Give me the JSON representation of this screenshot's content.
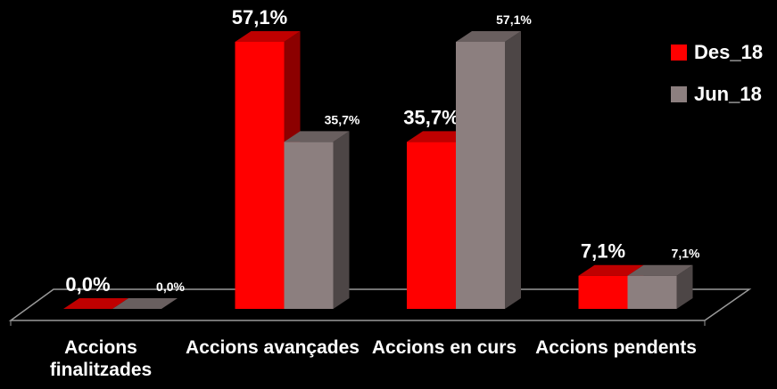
{
  "chart_data": {
    "type": "bar3d",
    "categories": [
      "Accions finalitzades",
      "Accions avançades",
      "Accions en curs",
      "Accions pendents"
    ],
    "series": [
      {
        "name": "Des_18",
        "color": "#ff0000",
        "values": [
          0,
          57.1,
          35.7,
          7.1
        ],
        "value_labels": [
          "0,0%",
          "57,1%",
          "35,7%",
          "7,1%"
        ]
      },
      {
        "name": "Jun_18",
        "color": "#8c7f7f",
        "values": [
          0,
          35.7,
          57.1,
          7.1
        ],
        "value_labels": [
          "0,0%",
          "35,7%",
          "57,1%",
          "7,1%"
        ]
      }
    ],
    "legend": "right"
  }
}
